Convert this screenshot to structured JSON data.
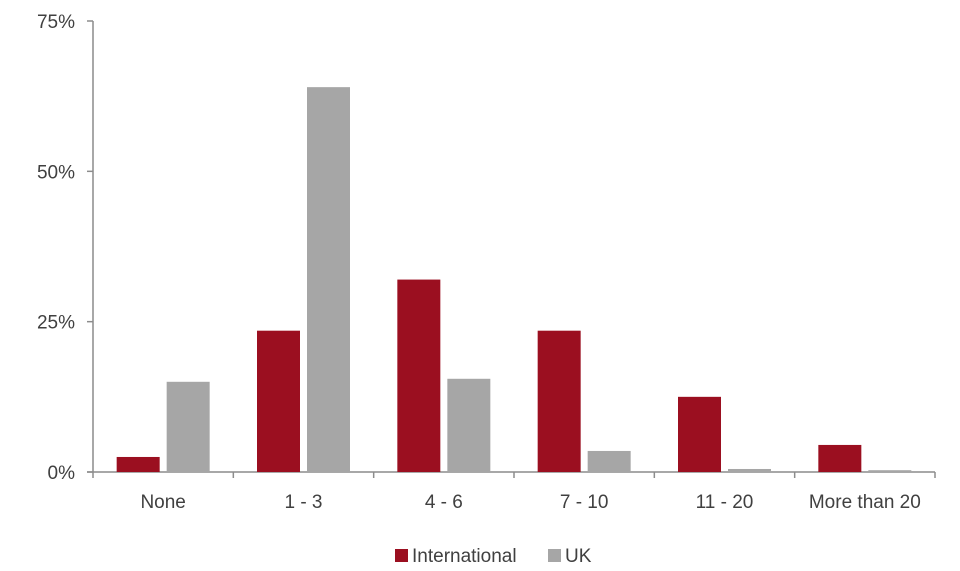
{
  "chart_data": {
    "type": "bar",
    "title": "",
    "xlabel": "",
    "ylabel": "",
    "categories": [
      "None",
      "1 - 3",
      "4 - 6",
      "7 - 10",
      "11 - 20",
      "More than 20"
    ],
    "series": [
      {
        "name": "International",
        "color": "#9b0f20",
        "values": [
          2.5,
          23.5,
          32,
          23.5,
          12.5,
          4.5
        ]
      },
      {
        "name": "UK",
        "color": "#a6a6a6",
        "values": [
          15,
          64,
          15.5,
          3.5,
          0.5,
          0.3
        ]
      }
    ],
    "ylim": [
      0,
      75
    ],
    "yticks": [
      0,
      25,
      50,
      75
    ],
    "ytick_labels": [
      "0%",
      "25%",
      "50%",
      "75%"
    ],
    "grid": false,
    "legend_position": "bottom-center"
  }
}
